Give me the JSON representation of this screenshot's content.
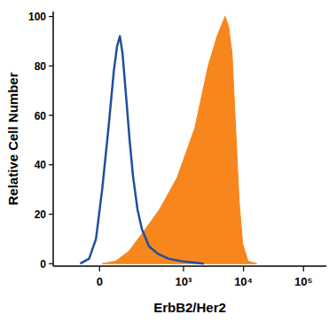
{
  "chart_data": {
    "type": "line",
    "x_label": "ErbB2/Her2",
    "y_label": "Relative Cell Number",
    "xlim": [
      -230,
      240000
    ],
    "ylim": [
      -1,
      102
    ],
    "xticks": [
      0,
      {
        "value": 1000,
        "label": "10³"
      },
      {
        "value": 10000,
        "label": "10⁴"
      },
      {
        "value": 100000,
        "label": "10⁵"
      }
    ],
    "yticks": [
      0,
      20,
      40,
      60,
      80,
      100
    ],
    "series": [
      {
        "type": "area",
        "color": "#f7861d",
        "x": [
          8,
          52,
          110,
          195,
          397,
          788,
          1550,
          2580,
          3630,
          4930,
          5640,
          6460,
          7400,
          8470,
          9690,
          11900,
          16600
        ],
        "values": [
          0,
          1,
          5,
          12,
          22,
          35,
          55,
          80,
          92,
          100,
          96,
          85,
          55,
          25,
          8,
          1,
          0
        ]
      },
      {
        "type": "line",
        "color": "#1f4fa0",
        "x": [
          -65,
          -33,
          -11,
          8,
          28,
          46,
          58,
          69,
          80,
          96,
          114,
          134,
          162,
          195,
          261,
          370,
          560,
          940,
          2180
        ],
        "values": [
          0,
          2,
          10,
          30,
          55,
          78,
          88,
          92,
          85,
          68,
          50,
          35,
          22,
          14,
          7,
          4,
          2,
          1,
          0
        ]
      }
    ]
  }
}
